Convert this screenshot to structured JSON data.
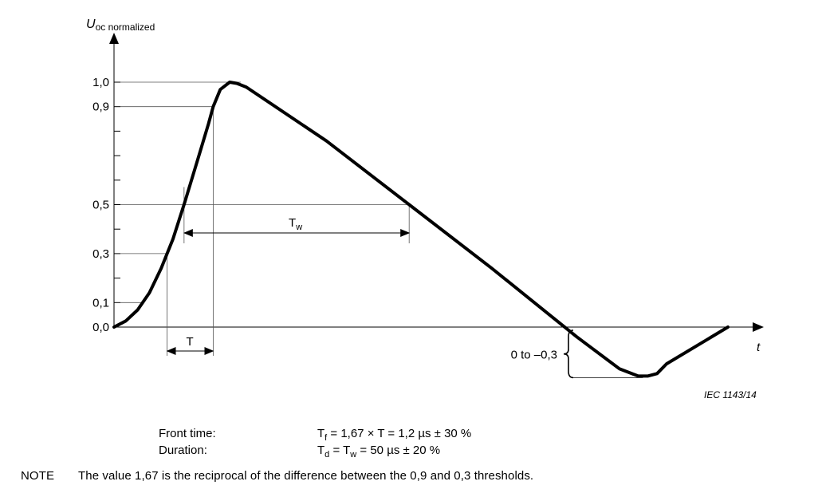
{
  "chart_data": {
    "type": "line",
    "title": "",
    "ylabel_main": "U",
    "ylabel_sub": "oc normalized",
    "xlabel": "t",
    "y_tick_labels": [
      "1,0",
      "0,9",
      "0,5",
      "0,3",
      "0,1",
      "0,0"
    ],
    "y_tick_values": [
      1.0,
      0.9,
      0.5,
      0.3,
      0.1,
      0.0
    ],
    "y_minor_ticks": [
      0.2,
      0.4,
      0.6,
      0.7,
      0.8
    ],
    "ylim": [
      -0.3,
      1.0
    ],
    "xlim": [
      0,
      26
    ],
    "grid": false,
    "series": [
      {
        "x": [
          0,
          0.5,
          1.0,
          1.5,
          2.0,
          2.5,
          3.0,
          3.5,
          4.0,
          4.2,
          4.5,
          4.9,
          5.2,
          5.6,
          9.0,
          12.5,
          16.0,
          19.6,
          21.4,
          22.2,
          22.6,
          23.0,
          23.4,
          26.0
        ],
        "y": [
          0.0,
          0.025,
          0.07,
          0.14,
          0.24,
          0.36,
          0.51,
          0.67,
          0.83,
          0.9,
          0.97,
          1.0,
          0.995,
          0.98,
          0.76,
          0.5,
          0.24,
          -0.04,
          -0.17,
          -0.2,
          -0.2,
          -0.19,
          -0.15,
          0.0
        ]
      }
    ],
    "annotations": {
      "tw_label_main": "T",
      "tw_label_sub": "w",
      "t_label": "T",
      "undershoot_label": "0 to –0,3",
      "figure_id": "IEC  1143/14"
    }
  },
  "caption": {
    "front_time_label": "Front time:",
    "duration_label": "Duration:",
    "tf_main": "T",
    "tf_sub": "f",
    "tf_rest": " = 1,67 × T = 1,2 µs ± 30 %",
    "td_main": "T",
    "td_sub": "d",
    "td_mid": " = T",
    "td_sub2": "w",
    "td_rest": " = 50 µs ± 20 %"
  },
  "note": {
    "head": "NOTE",
    "text": "The value 1,67 is the reciprocal of the difference between the 0,9 and 0,3 thresholds."
  }
}
